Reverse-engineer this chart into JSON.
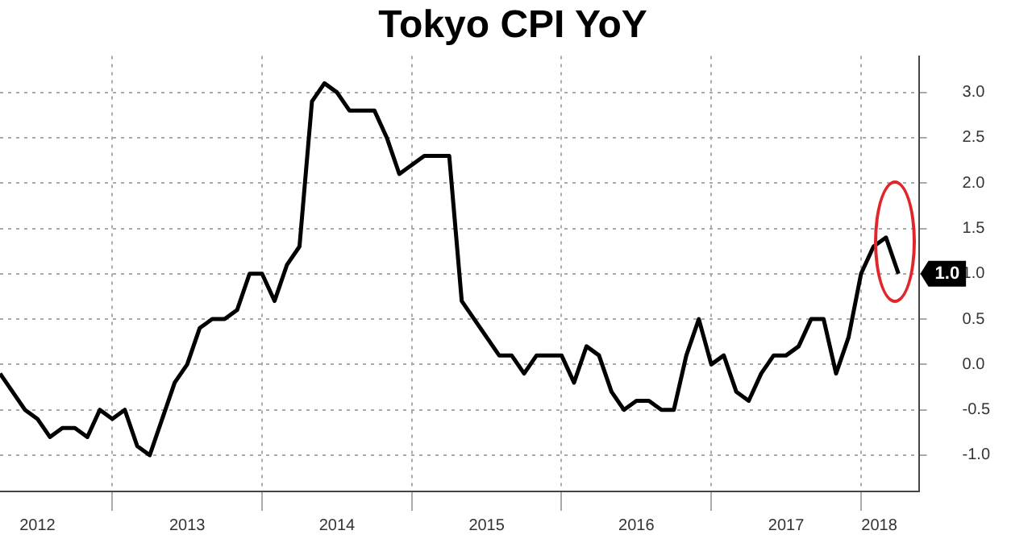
{
  "chart_data": {
    "type": "line",
    "title": "Tokyo CPI YoY",
    "x": [
      "2012-04",
      "2012-05",
      "2012-06",
      "2012-07",
      "2012-08",
      "2012-09",
      "2012-10",
      "2012-11",
      "2012-12",
      "2013-01",
      "2013-02",
      "2013-03",
      "2013-04",
      "2013-05",
      "2013-06",
      "2013-07",
      "2013-08",
      "2013-09",
      "2013-10",
      "2013-11",
      "2013-12",
      "2014-01",
      "2014-02",
      "2014-03",
      "2014-04",
      "2014-05",
      "2014-06",
      "2014-07",
      "2014-08",
      "2014-09",
      "2014-10",
      "2014-11",
      "2014-12",
      "2015-01",
      "2015-02",
      "2015-03",
      "2015-04",
      "2015-05",
      "2015-06",
      "2015-07",
      "2015-08",
      "2015-09",
      "2015-10",
      "2015-11",
      "2015-12",
      "2016-01",
      "2016-02",
      "2016-03",
      "2016-04",
      "2016-05",
      "2016-06",
      "2016-07",
      "2016-08",
      "2016-09",
      "2016-10",
      "2016-11",
      "2016-12",
      "2017-01",
      "2017-02",
      "2017-03",
      "2017-04",
      "2017-05",
      "2017-06",
      "2017-07",
      "2017-08",
      "2017-09",
      "2017-10",
      "2017-11",
      "2017-12",
      "2018-01",
      "2018-02",
      "2018-03",
      "2018-04"
    ],
    "series": [
      {
        "color": "#000000",
        "values": [
          -0.1,
          -0.3,
          -0.5,
          -0.6,
          -0.8,
          -0.7,
          -0.7,
          -0.8,
          -0.5,
          -0.6,
          -0.5,
          -0.9,
          -1.0,
          -0.6,
          -0.2,
          0.0,
          0.4,
          0.5,
          0.5,
          0.6,
          1.0,
          1.0,
          0.7,
          1.1,
          1.3,
          2.9,
          3.1,
          3.0,
          2.8,
          2.8,
          2.8,
          2.5,
          2.1,
          2.2,
          2.3,
          2.3,
          2.3,
          0.7,
          0.5,
          0.3,
          0.1,
          0.1,
          -0.1,
          0.1,
          0.1,
          0.1,
          -0.2,
          0.2,
          0.1,
          -0.3,
          -0.5,
          -0.4,
          -0.4,
          -0.5,
          -0.5,
          0.1,
          0.5,
          0.0,
          0.1,
          -0.3,
          -0.4,
          -0.1,
          0.1,
          0.1,
          0.2,
          0.5,
          0.5,
          -0.1,
          0.3,
          1.0,
          1.3,
          1.4,
          1.0
        ]
      }
    ],
    "xlim": [
      "2012-04",
      "2018-05-20"
    ],
    "xticks": [
      {
        "value": "2012-07",
        "label": "2012"
      },
      {
        "value": "2013-01",
        "label": null
      },
      {
        "value": "2013-07",
        "label": "2013"
      },
      {
        "value": "2014-01",
        "label": null
      },
      {
        "value": "2014-07",
        "label": "2014"
      },
      {
        "value": "2015-01",
        "label": null
      },
      {
        "value": "2015-07",
        "label": "2015"
      },
      {
        "value": "2016-01",
        "label": null
      },
      {
        "value": "2016-07",
        "label": "2016"
      },
      {
        "value": "2017-01",
        "label": null
      },
      {
        "value": "2017-07",
        "label": "2017"
      },
      {
        "value": "2018-01",
        "label": null
      },
      {
        "value": "2018-02-15",
        "label": "2018"
      }
    ],
    "ylim": [
      -1.4,
      3.4
    ],
    "yticks": [
      {
        "value": -1,
        "label": "-1.0"
      },
      {
        "value": -0.5,
        "label": "-0.5"
      },
      {
        "value": 0,
        "label": "0.0"
      },
      {
        "value": 0.5,
        "label": "0.5"
      },
      {
        "value": 1,
        "label": "1.0"
      },
      {
        "value": 1.5,
        "label": "1.5"
      },
      {
        "value": 2,
        "label": "2.0"
      },
      {
        "value": 2.5,
        "label": "2.5"
      },
      {
        "value": 3,
        "label": "3.0"
      }
    ],
    "annotations": [
      {
        "text": "1.0",
        "x": "2018-04",
        "y": 1.0
      }
    ],
    "grid": true,
    "legend": false,
    "marker": "none",
    "line_style": "solid"
  }
}
